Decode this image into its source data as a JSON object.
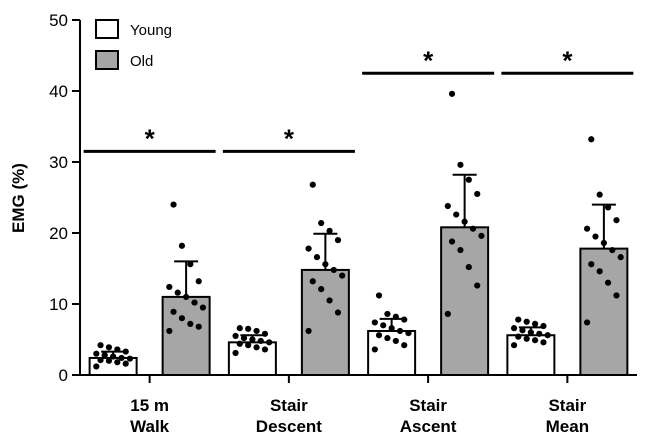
{
  "chart_data": {
    "type": "bar",
    "ylabel": "EMG (%)",
    "ylim": [
      0,
      50
    ],
    "yticks": [
      "0",
      "10",
      "20",
      "30",
      "40",
      "50"
    ],
    "ytick_values": [
      0,
      10,
      20,
      30,
      40,
      50
    ],
    "categories": [
      [
        "15 m",
        "Walk"
      ],
      [
        "Stair",
        "Descent"
      ],
      [
        "Stair",
        "Ascent"
      ],
      [
        "Stair",
        "Mean"
      ]
    ],
    "legend_position": "top-left",
    "series": [
      {
        "name": "Young",
        "color": "#ffffff",
        "values": [
          2.4,
          4.6,
          6.2,
          5.6
        ],
        "sd": [
          0.9,
          1.0,
          1.7,
          1.1
        ],
        "points": [
          [
            1.2,
            1.6,
            1.8,
            2.0,
            2.1,
            2.3,
            2.4,
            2.6,
            2.8,
            3.0,
            3.3,
            3.6,
            3.9,
            4.2
          ],
          [
            3.1,
            3.6,
            3.9,
            4.2,
            4.4,
            4.6,
            4.8,
            5.0,
            5.2,
            5.5,
            5.8,
            6.2,
            6.5,
            6.6
          ],
          [
            3.6,
            4.2,
            4.8,
            5.2,
            5.6,
            5.9,
            6.2,
            6.6,
            7.0,
            7.4,
            7.8,
            8.2,
            8.6,
            11.2
          ],
          [
            4.2,
            4.6,
            4.9,
            5.1,
            5.4,
            5.6,
            5.8,
            6.0,
            6.3,
            6.6,
            6.9,
            7.2,
            7.5,
            7.8
          ]
        ]
      },
      {
        "name": "Old",
        "color": "#a6a6a6",
        "values": [
          11.0,
          14.8,
          20.8,
          17.8
        ],
        "sd": [
          5.0,
          5.1,
          7.4,
          6.2
        ],
        "points": [
          [
            6.2,
            6.8,
            7.2,
            8.0,
            8.9,
            9.5,
            10.2,
            11.0,
            11.6,
            12.4,
            13.2,
            15.6,
            18.2,
            24.0
          ],
          [
            6.2,
            8.8,
            10.5,
            12.1,
            13.2,
            14.0,
            14.8,
            15.6,
            16.6,
            17.8,
            19.0,
            20.3,
            21.4,
            26.8
          ],
          [
            8.6,
            12.6,
            15.2,
            17.6,
            18.8,
            19.6,
            20.6,
            21.6,
            22.6,
            23.8,
            25.5,
            27.5,
            29.6,
            39.6
          ],
          [
            7.4,
            11.2,
            13.0,
            14.6,
            15.6,
            16.6,
            17.6,
            18.6,
            19.5,
            20.6,
            21.8,
            23.6,
            25.4,
            33.2
          ]
        ]
      }
    ],
    "significance": [
      {
        "label": "*",
        "category": 0,
        "y": 31.5
      },
      {
        "label": "*",
        "category": 1,
        "y": 31.5
      },
      {
        "label": "*",
        "category": 2,
        "y": 42.5
      },
      {
        "label": "*",
        "category": 3,
        "y": 42.5
      }
    ]
  }
}
